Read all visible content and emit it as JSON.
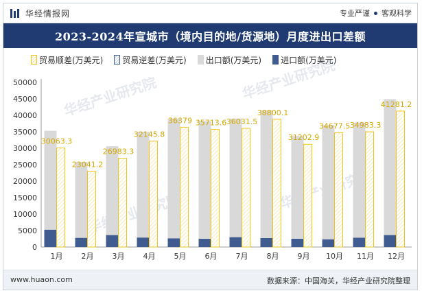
{
  "header": {
    "brand": "华经情报网",
    "tag1": "专业严谨",
    "tag2": "客观科学"
  },
  "title": "2023-2024年宣城市（境内目的地/货源地）月度进出口差额",
  "legend": {
    "surplus": "贸易顺差(万美元)",
    "deficit": "贸易逆差(万美元)",
    "export": "出口额(万美元)",
    "import": "进口额(万美元)"
  },
  "footer": {
    "url": "www.huaon.com",
    "source": "数据来源：中国海关，华经产业研究院整理"
  },
  "colors": {
    "title_bg": "#1f3b72",
    "export": "#d9d9d9",
    "import": "#3f5b8f",
    "surplus_border": "#f0c419",
    "label": "#d4a800"
  },
  "chart_data": {
    "type": "bar",
    "categories": [
      "1月",
      "2月",
      "3月",
      "4月",
      "5月",
      "6月",
      "7月",
      "8月",
      "9月",
      "10月",
      "11月",
      "12月"
    ],
    "ylim": [
      0,
      50000
    ],
    "yticks": [
      0,
      5000,
      10000,
      15000,
      20000,
      25000,
      30000,
      35000,
      40000,
      45000,
      50000
    ],
    "series": [
      {
        "name": "出口额(万美元)",
        "values": [
          35300,
          25800,
          30600,
          35000,
          39000,
          38200,
          39000,
          41500,
          33700,
          37000,
          37800,
          44900
        ]
      },
      {
        "name": "进口额(万美元)",
        "values": [
          5237,
          2759,
          3616,
          2854,
          2621,
          2486,
          2969,
          2700,
          2497,
          2323,
          2817,
          3619
        ]
      },
      {
        "name": "贸易顺差(万美元)",
        "values": [
          30063.3,
          23041.2,
          26983.3,
          32145.8,
          36379,
          35713.6,
          36031.5,
          38800.1,
          31202.9,
          34677.5,
          34983.3,
          41281.2
        ]
      }
    ],
    "labels": [
      "30063.3",
      "23041.2",
      "26983.3",
      "32145.8",
      "36379",
      "35713.6",
      "36031.5",
      "38800.1",
      "31202.9",
      "34677.5",
      "34983.3",
      "41281.2"
    ]
  }
}
